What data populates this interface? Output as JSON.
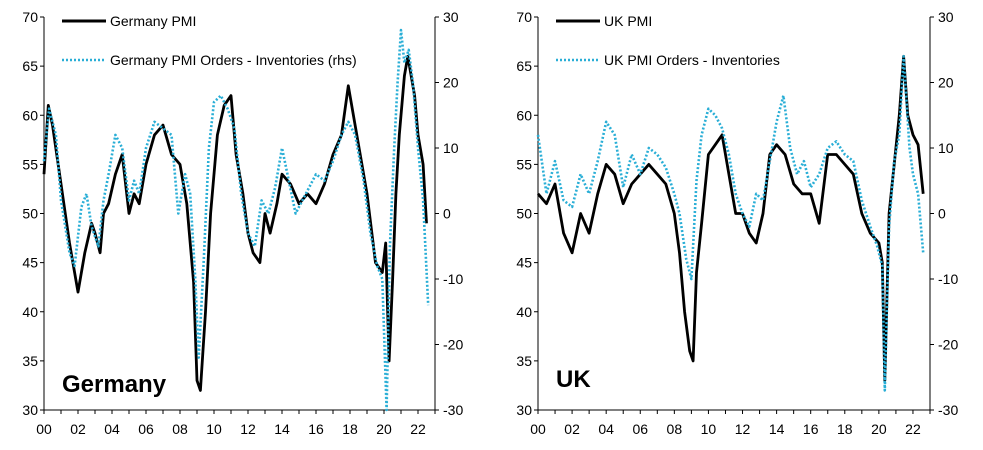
{
  "colors": {
    "pmi": "#000000",
    "orders_inventories": "#29aed6"
  },
  "chart_data": [
    {
      "type": "line",
      "label": "Germany",
      "legend_position": "top-left",
      "grid": false,
      "x_axis": {
        "ticks": [
          "00",
          "02",
          "04",
          "06",
          "08",
          "10",
          "12",
          "14",
          "16",
          "18",
          "20",
          "22"
        ]
      },
      "y_left": {
        "ylim": [
          30,
          70
        ],
        "ticks": [
          30,
          35,
          40,
          45,
          50,
          55,
          60,
          65,
          70
        ]
      },
      "y_right": {
        "ylim": [
          -30,
          30
        ],
        "ticks": [
          -30,
          -20,
          -10,
          0,
          10,
          20,
          30
        ]
      },
      "series": [
        {
          "name": "Germany PMI",
          "axis": "left",
          "style": "solid",
          "x": [
            2000.0,
            2000.25,
            2000.5,
            2001.0,
            2001.5,
            2001.8,
            2002.0,
            2002.4,
            2002.8,
            2003.0,
            2003.3,
            2003.5,
            2003.8,
            2004.2,
            2004.6,
            2005.0,
            2005.3,
            2005.6,
            2006.0,
            2006.5,
            2007.0,
            2007.5,
            2008.0,
            2008.4,
            2008.8,
            2009.0,
            2009.2,
            2009.5,
            2009.8,
            2010.2,
            2010.6,
            2011.0,
            2011.3,
            2011.7,
            2012.0,
            2012.3,
            2012.7,
            2013.0,
            2013.3,
            2013.7,
            2014.0,
            2014.5,
            2015.0,
            2015.5,
            2016.0,
            2016.5,
            2017.0,
            2017.5,
            2017.9,
            2018.5,
            2019.0,
            2019.5,
            2019.9,
            2020.1,
            2020.3,
            2020.5,
            2020.7,
            2020.9,
            2021.2,
            2021.4,
            2021.8,
            2022.0,
            2022.3,
            2022.5
          ],
          "y": [
            54,
            61,
            59,
            53,
            47,
            44,
            42,
            46,
            49,
            48,
            46,
            50,
            51,
            54,
            56,
            50,
            52,
            51,
            55,
            58,
            59,
            56,
            55,
            51,
            43,
            33,
            32,
            40,
            50,
            58,
            61,
            62,
            56,
            52,
            48,
            46,
            45,
            50,
            48,
            51,
            54,
            53,
            51,
            52,
            51,
            53,
            56,
            58,
            63,
            57,
            52,
            45,
            44,
            47,
            35,
            43,
            52,
            58,
            64,
            66,
            62,
            58,
            55,
            49
          ]
        },
        {
          "name": "Germany PMI Orders - Inventories (rhs)",
          "axis": "right",
          "style": "dotted",
          "x": [
            2000.0,
            2000.3,
            2000.7,
            2001.0,
            2001.5,
            2001.8,
            2002.2,
            2002.5,
            2002.8,
            2003.2,
            2003.5,
            2003.8,
            2004.2,
            2004.6,
            2005.0,
            2005.3,
            2005.6,
            2006.0,
            2006.5,
            2007.0,
            2007.5,
            2007.9,
            2008.3,
            2008.6,
            2008.9,
            2009.1,
            2009.4,
            2009.7,
            2010.0,
            2010.4,
            2010.8,
            2011.2,
            2011.6,
            2012.0,
            2012.4,
            2012.8,
            2013.2,
            2013.6,
            2014.0,
            2014.4,
            2014.8,
            2015.2,
            2015.6,
            2016.0,
            2016.5,
            2017.0,
            2017.5,
            2017.9,
            2018.3,
            2018.8,
            2019.2,
            2019.6,
            2019.9,
            2020.15,
            2020.35,
            2020.6,
            2020.8,
            2021.0,
            2021.2,
            2021.45,
            2021.7,
            2022.0,
            2022.3,
            2022.6
          ],
          "y": [
            8,
            16,
            12,
            2,
            -6,
            -8,
            1,
            3,
            -2,
            -5,
            2,
            6,
            12,
            10,
            2,
            5,
            3,
            10,
            14,
            13,
            12,
            0,
            6,
            3,
            -10,
            -22,
            -7,
            10,
            17,
            18,
            16,
            13,
            3,
            -3,
            -5,
            2,
            0,
            4,
            10,
            5,
            0,
            2,
            4,
            6,
            5,
            8,
            12,
            14,
            12,
            5,
            -3,
            -8,
            -10,
            -30,
            -5,
            10,
            20,
            28,
            23,
            25,
            20,
            10,
            2,
            -14
          ]
        }
      ]
    },
    {
      "type": "line",
      "label": "UK",
      "legend_position": "top-left",
      "grid": false,
      "x_axis": {
        "ticks": [
          "00",
          "02",
          "04",
          "06",
          "08",
          "10",
          "12",
          "14",
          "16",
          "18",
          "20",
          "22"
        ]
      },
      "y_left": {
        "ylim": [
          30,
          70
        ],
        "ticks": [
          30,
          35,
          40,
          45,
          50,
          55,
          60,
          65,
          70
        ]
      },
      "y_right": {
        "ylim": [
          -30,
          30
        ],
        "ticks": [
          -30,
          -20,
          -10,
          0,
          10,
          20,
          30
        ]
      },
      "series": [
        {
          "name": "UK PMI",
          "axis": "left",
          "style": "solid",
          "x": [
            2000.0,
            2000.5,
            2001.0,
            2001.5,
            2002.0,
            2002.5,
            2003.0,
            2003.5,
            2004.0,
            2004.5,
            2005.0,
            2005.5,
            2006.0,
            2006.5,
            2007.0,
            2007.5,
            2008.0,
            2008.3,
            2008.6,
            2008.9,
            2009.1,
            2009.3,
            2009.6,
            2010.0,
            2010.4,
            2010.8,
            2011.2,
            2011.6,
            2012.0,
            2012.4,
            2012.8,
            2013.2,
            2013.6,
            2014.0,
            2014.5,
            2015.0,
            2015.5,
            2016.0,
            2016.5,
            2017.0,
            2017.5,
            2018.0,
            2018.5,
            2019.0,
            2019.5,
            2020.0,
            2020.2,
            2020.35,
            2020.6,
            2020.9,
            2021.2,
            2021.45,
            2021.7,
            2022.0,
            2022.3,
            2022.6
          ],
          "y": [
            52,
            51,
            53,
            48,
            46,
            50,
            48,
            52,
            55,
            54,
            51,
            53,
            54,
            55,
            54,
            53,
            50,
            46,
            40,
            36,
            35,
            44,
            49,
            56,
            57,
            58,
            54,
            50,
            50,
            48,
            47,
            50,
            56,
            57,
            56,
            53,
            52,
            52,
            49,
            56,
            56,
            55,
            54,
            50,
            48,
            47,
            45,
            33,
            50,
            55,
            60,
            66,
            60,
            58,
            57,
            52
          ]
        },
        {
          "name": "UK PMI Orders - Inventories",
          "axis": "right",
          "style": "dotted",
          "x": [
            2000.0,
            2000.5,
            2001.0,
            2001.5,
            2002.0,
            2002.5,
            2003.0,
            2003.5,
            2004.0,
            2004.5,
            2005.0,
            2005.5,
            2006.0,
            2006.5,
            2007.0,
            2007.5,
            2008.0,
            2008.3,
            2008.7,
            2009.0,
            2009.3,
            2009.6,
            2010.0,
            2010.4,
            2010.8,
            2011.2,
            2011.6,
            2012.0,
            2012.4,
            2012.8,
            2013.2,
            2013.6,
            2014.0,
            2014.4,
            2014.8,
            2015.2,
            2015.6,
            2016.0,
            2016.5,
            2017.0,
            2017.5,
            2018.0,
            2018.5,
            2019.0,
            2019.5,
            2019.9,
            2020.2,
            2020.35,
            2020.6,
            2020.9,
            2021.2,
            2021.45,
            2021.8,
            2022.0,
            2022.3,
            2022.6
          ],
          "y": [
            12,
            3,
            8,
            2,
            1,
            6,
            3,
            8,
            14,
            12,
            4,
            9,
            6,
            10,
            9,
            7,
            3,
            0,
            -7,
            -10,
            5,
            12,
            16,
            15,
            13,
            9,
            3,
            0,
            -2,
            3,
            2,
            8,
            14,
            18,
            10,
            6,
            8,
            4,
            6,
            10,
            11,
            9,
            8,
            2,
            -2,
            -5,
            -8,
            -27,
            -2,
            8,
            12,
            24,
            10,
            6,
            3,
            -6
          ]
        }
      ]
    }
  ]
}
